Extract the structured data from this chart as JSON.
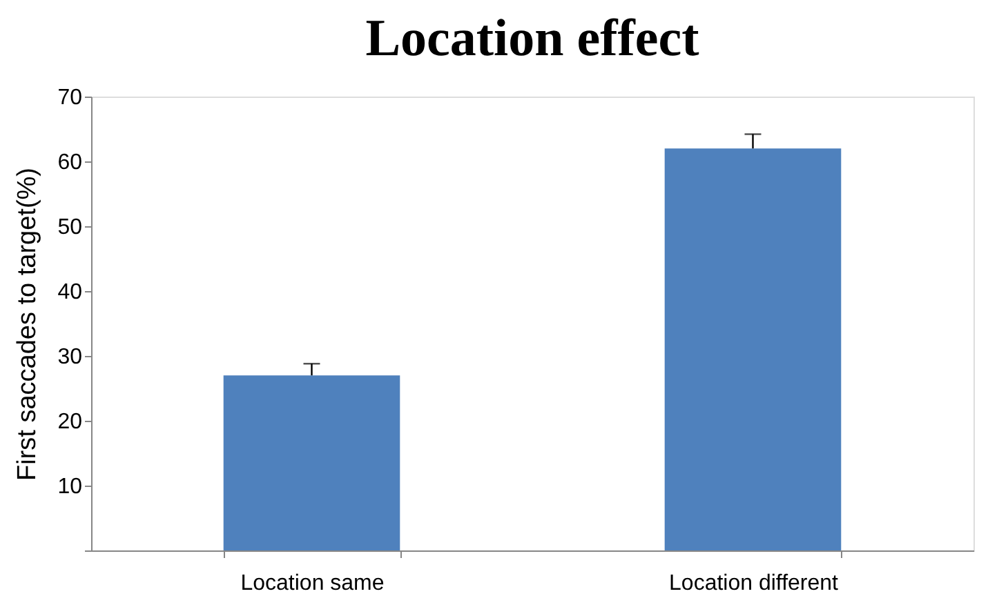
{
  "chart_data": {
    "type": "bar",
    "title": "Location effect",
    "ylabel": "First saccades to target(%)",
    "categories": [
      "Location same",
      "Location different"
    ],
    "values": [
      27,
      62
    ],
    "color": "#4f81bd",
    "errors": [
      [
        27,
        28.8
      ],
      [
        62,
        64.2
      ]
    ],
    "ylim": [
      0,
      70
    ],
    "yticks": [
      {
        "value": 0,
        "label": null
      },
      10,
      20,
      30,
      40,
      50,
      60,
      70
    ],
    "grid": false
  }
}
